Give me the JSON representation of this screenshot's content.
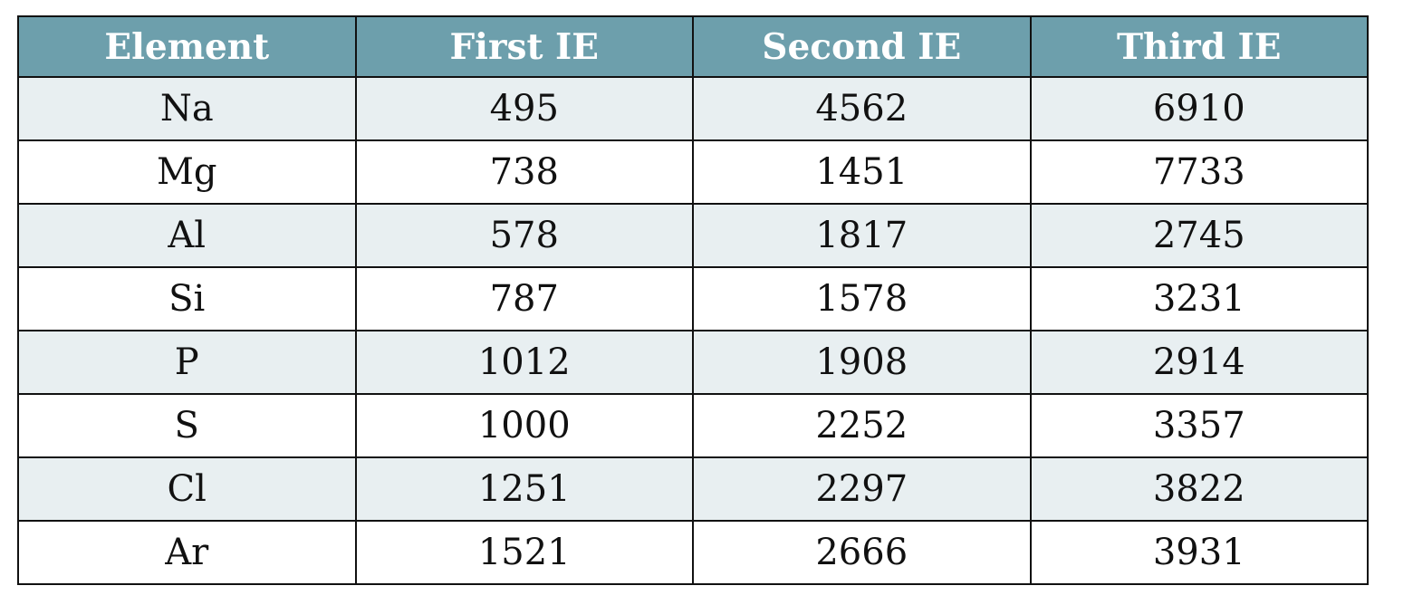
{
  "table": {
    "headers": [
      "Element",
      "First IE",
      "Second IE",
      "Third IE"
    ],
    "rows": [
      [
        "Na",
        "495",
        "4562",
        "6910"
      ],
      [
        "Mg",
        "738",
        "1451",
        "7733"
      ],
      [
        "Al",
        "578",
        "1817",
        "2745"
      ],
      [
        "Si",
        "787",
        "1578",
        "3231"
      ],
      [
        "P",
        "1012",
        "1908",
        "2914"
      ],
      [
        "S",
        "1000",
        "2252",
        "3357"
      ],
      [
        "Cl",
        "1251",
        "2297",
        "3822"
      ],
      [
        "Ar",
        "1521",
        "2666",
        "3931"
      ]
    ]
  },
  "colors": {
    "header_background": "#6d9fac",
    "header_text": "#ffffff",
    "stripe_row": "#e8eff1",
    "plain_row": "#ffffff",
    "border": "#111111"
  }
}
